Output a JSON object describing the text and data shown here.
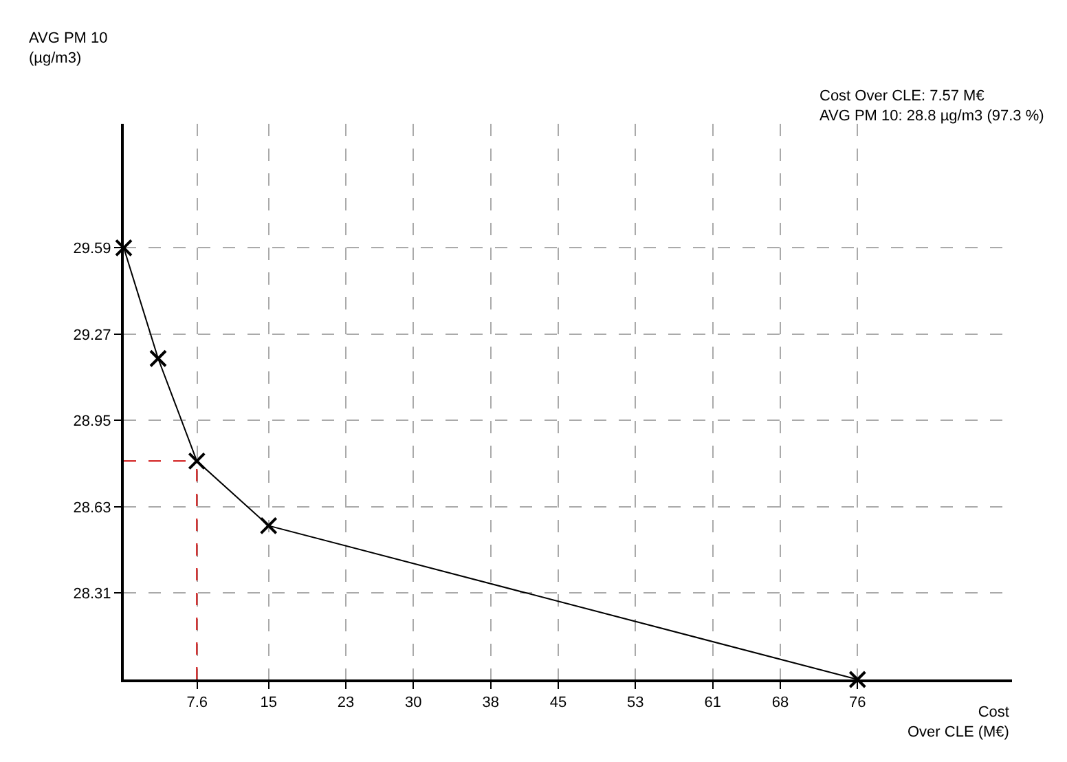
{
  "chart_data": {
    "type": "line",
    "xlabel": "Cost\nOver CLE (M€)",
    "ylabel": "AVG PM 10\n(µg/m3)",
    "x": [
      0,
      3.56,
      7.57,
      15,
      76
    ],
    "series": [
      {
        "color": "#000000",
        "values": [
          29.59,
          29.18,
          28.8,
          28.56,
          27.99
        ]
      }
    ],
    "xlim": [
      0,
      92
    ],
    "ylim": [
      27.99,
      30.05
    ],
    "xticks": [
      7.6,
      15,
      23,
      30,
      38,
      45,
      53,
      61,
      68,
      76
    ],
    "yticks": [
      28.31,
      28.63,
      28.95,
      29.27,
      29.59
    ],
    "grid": true,
    "marker": "cross",
    "line_style": "solid",
    "legend": false,
    "ref_lines": [
      {
        "axis": "x",
        "value": 7.57,
        "color": "#cc0000",
        "line_style": "dashed"
      },
      {
        "axis": "y",
        "value": 28.8,
        "color": "#cc0000",
        "line_style": "dashed"
      }
    ],
    "annotations": [
      "Cost Over CLE: 7.57 M€",
      "AVG PM 10: 28.8 µg/m3 (97.3 %)"
    ]
  }
}
